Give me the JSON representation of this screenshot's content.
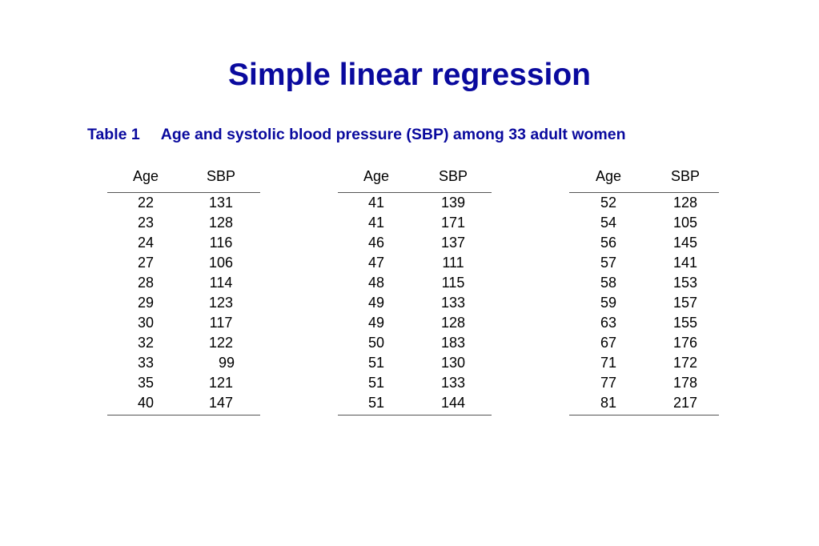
{
  "title": "Simple linear regression",
  "caption": {
    "label": "Table 1",
    "text": "Age and systolic blood pressure (SBP) among 33 adult women"
  },
  "colors": {
    "heading": "#0a0a9e",
    "text": "#000000",
    "rule": "#555555"
  },
  "tables": [
    {
      "headers": [
        "Age",
        "SBP"
      ],
      "rows": [
        [
          "22",
          "131"
        ],
        [
          "23",
          "128"
        ],
        [
          "24",
          "116"
        ],
        [
          "27",
          "106"
        ],
        [
          "28",
          "114"
        ],
        [
          "29",
          "123"
        ],
        [
          "30",
          "117"
        ],
        [
          "32",
          "122"
        ],
        [
          "33",
          "99"
        ],
        [
          "35",
          "121"
        ],
        [
          "40",
          "147"
        ]
      ]
    },
    {
      "headers": [
        "Age",
        "SBP"
      ],
      "rows": [
        [
          "41",
          "139"
        ],
        [
          "41",
          "171"
        ],
        [
          "46",
          "137"
        ],
        [
          "47",
          "111"
        ],
        [
          "48",
          "115"
        ],
        [
          "49",
          "133"
        ],
        [
          "49",
          "128"
        ],
        [
          "50",
          "183"
        ],
        [
          "51",
          "130"
        ],
        [
          "51",
          "133"
        ],
        [
          "51",
          "144"
        ]
      ]
    },
    {
      "headers": [
        "Age",
        "SBP"
      ],
      "rows": [
        [
          "52",
          "128"
        ],
        [
          "54",
          "105"
        ],
        [
          "56",
          "145"
        ],
        [
          "57",
          "141"
        ],
        [
          "58",
          "153"
        ],
        [
          "59",
          "157"
        ],
        [
          "63",
          "155"
        ],
        [
          "67",
          "176"
        ],
        [
          "71",
          "172"
        ],
        [
          "77",
          "178"
        ],
        [
          "81",
          "217"
        ]
      ]
    }
  ]
}
